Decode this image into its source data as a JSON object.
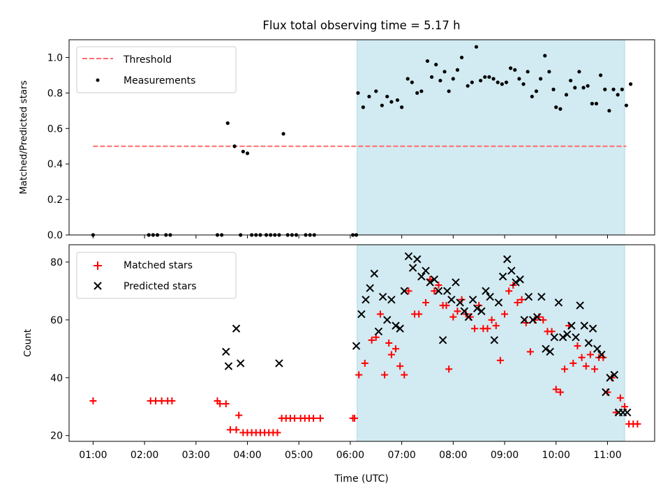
{
  "figure_title": "Flux total observing time = 5.17 h",
  "xlabel": "Time (UTC)",
  "xticks": [
    "01:00",
    "02:00",
    "03:00",
    "04:00",
    "05:00",
    "06:00",
    "07:00",
    "08:00",
    "09:00",
    "10:00",
    "11:00"
  ],
  "colors": {
    "shade": "#add8e6",
    "threshold": "#ff6b6b",
    "measurement": "#000000",
    "matched": "#ff0000",
    "predicted": "#000000"
  },
  "chart_data": [
    {
      "type": "scatter",
      "panel": "top",
      "ylabel": "Matched/Predicted stars",
      "xlim": [
        "00:32",
        "11:55"
      ],
      "ylim": [
        0,
        1.1
      ],
      "yticks": [
        "0.0",
        "0.2",
        "0.4",
        "0.6",
        "0.8",
        "1.0"
      ],
      "legend_position": "upper left",
      "shaded_interval": [
        "06:08",
        "11:20"
      ],
      "threshold": {
        "name": "Threshold",
        "value": 0.5,
        "x_range": [
          "01:00",
          "11:22"
        ]
      },
      "series": [
        {
          "name": "Measurements",
          "x": [
            "01:00",
            "02:05",
            "02:10",
            "02:15",
            "02:25",
            "02:30",
            "03:25",
            "03:30",
            "03:37",
            "03:45",
            "03:52",
            "03:55",
            "04:00",
            "04:05",
            "04:10",
            "04:15",
            "04:22",
            "04:27",
            "04:32",
            "04:37",
            "04:42",
            "04:47",
            "04:52",
            "04:57",
            "05:08",
            "05:13",
            "05:18",
            "06:03",
            "06:07",
            "06:09",
            "06:15",
            "06:22",
            "06:30",
            "06:37",
            "06:43",
            "06:48",
            "06:55",
            "07:00",
            "07:07",
            "07:12",
            "07:18",
            "07:23",
            "07:30",
            "07:35",
            "07:40",
            "07:45",
            "07:50",
            "07:55",
            "08:00",
            "08:05",
            "08:10",
            "08:17",
            "08:22",
            "08:27",
            "08:32",
            "08:37",
            "08:42",
            "08:47",
            "08:52",
            "08:57",
            "09:02",
            "09:07",
            "09:12",
            "09:17",
            "09:22",
            "09:27",
            "09:32",
            "09:37",
            "09:42",
            "09:47",
            "09:52",
            "09:57",
            "10:00",
            "10:05",
            "10:12",
            "10:17",
            "10:22",
            "10:27",
            "10:32",
            "10:37",
            "10:42",
            "10:47",
            "10:52",
            "10:57",
            "11:02",
            "11:07",
            "11:12",
            "11:17",
            "11:22",
            "11:27"
          ],
          "y": [
            0.0,
            0.0,
            0.0,
            0.0,
            0.0,
            0.0,
            0.0,
            0.0,
            0.63,
            0.5,
            0.0,
            0.47,
            0.46,
            0.0,
            0.0,
            0.0,
            0.0,
            0.0,
            0.0,
            0.0,
            0.57,
            0.0,
            0.0,
            0.0,
            0.0,
            0.0,
            0.0,
            0.0,
            0.0,
            0.8,
            0.72,
            0.78,
            0.81,
            0.73,
            0.78,
            0.75,
            0.76,
            0.72,
            0.88,
            0.86,
            0.8,
            0.81,
            0.98,
            0.89,
            0.96,
            0.87,
            0.92,
            0.81,
            0.88,
            0.93,
            1.0,
            0.84,
            0.86,
            1.06,
            0.87,
            0.89,
            0.89,
            0.88,
            0.86,
            0.85,
            0.86,
            0.94,
            0.93,
            0.88,
            0.85,
            0.92,
            0.78,
            0.81,
            0.88,
            1.01,
            0.92,
            0.82,
            0.72,
            0.71,
            0.79,
            0.87,
            0.83,
            0.92,
            0.83,
            0.84,
            0.74,
            0.74,
            0.9,
            0.82,
            0.7,
            0.82,
            0.79,
            0.82,
            0.73,
            0.85
          ]
        }
      ]
    },
    {
      "type": "scatter",
      "panel": "bottom",
      "ylabel": "Count",
      "xlim": [
        "00:32",
        "11:55"
      ],
      "ylim": [
        18,
        86
      ],
      "yticks": [
        "20",
        "40",
        "60",
        "80"
      ],
      "legend_position": "upper left",
      "shaded_interval": [
        "06:08",
        "11:20"
      ],
      "series": [
        {
          "name": "Matched stars",
          "x": [
            "01:00",
            "02:07",
            "02:13",
            "02:20",
            "02:27",
            "02:32",
            "03:25",
            "03:28",
            "03:35",
            "03:40",
            "03:47",
            "03:50",
            "03:55",
            "04:00",
            "04:05",
            "04:10",
            "04:15",
            "04:20",
            "04:25",
            "04:30",
            "04:35",
            "04:40",
            "04:45",
            "04:50",
            "04:55",
            "05:02",
            "05:07",
            "05:12",
            "05:17",
            "05:25",
            "06:03",
            "06:05",
            "06:10",
            "06:17",
            "06:25",
            "06:30",
            "06:35",
            "06:40",
            "06:45",
            "06:48",
            "06:53",
            "06:58",
            "07:03",
            "07:08",
            "07:15",
            "07:20",
            "07:28",
            "07:33",
            "07:38",
            "07:43",
            "07:48",
            "07:52",
            "07:55",
            "08:00",
            "08:05",
            "08:10",
            "08:15",
            "08:20",
            "08:25",
            "08:30",
            "08:35",
            "08:40",
            "08:45",
            "08:50",
            "08:55",
            "09:00",
            "09:05",
            "09:10",
            "09:15",
            "09:20",
            "09:25",
            "09:30",
            "09:35",
            "09:40",
            "09:45",
            "09:50",
            "09:55",
            "10:00",
            "10:05",
            "10:10",
            "10:15",
            "10:20",
            "10:25",
            "10:30",
            "10:35",
            "10:40",
            "10:45",
            "10:50",
            "10:55",
            "11:00",
            "11:05",
            "11:10",
            "11:15",
            "11:20",
            "11:25",
            "11:30",
            "11:35"
          ],
          "y": [
            32,
            32,
            32,
            32,
            32,
            32,
            32,
            31,
            31,
            22,
            22,
            27,
            21,
            21,
            21,
            21,
            21,
            21,
            21,
            21,
            21,
            26,
            26,
            26,
            26,
            26,
            26,
            26,
            26,
            26,
            26,
            26,
            41,
            45,
            53,
            54,
            62,
            41,
            52,
            48,
            50,
            44,
            41,
            70,
            62,
            62,
            66,
            74,
            70,
            72,
            65,
            65,
            43,
            61,
            63,
            67,
            62,
            61,
            57,
            65,
            57,
            57,
            60,
            58,
            46,
            62,
            70,
            72,
            66,
            67,
            59,
            49,
            60,
            61,
            60,
            56,
            56,
            36,
            35,
            43,
            58,
            45,
            51,
            47,
            44,
            48,
            43,
            47,
            47,
            35,
            40,
            28,
            33,
            30,
            24,
            24,
            24
          ]
        },
        {
          "name": "Predicted stars",
          "x": [
            "03:35",
            "03:38",
            "03:47",
            "03:52",
            "04:37",
            "06:07",
            "06:13",
            "06:18",
            "06:23",
            "06:28",
            "06:33",
            "06:38",
            "06:43",
            "06:48",
            "06:53",
            "06:58",
            "07:03",
            "07:08",
            "07:13",
            "07:18",
            "07:23",
            "07:28",
            "07:33",
            "07:38",
            "07:43",
            "07:48",
            "07:53",
            "07:58",
            "08:03",
            "08:08",
            "08:13",
            "08:18",
            "08:23",
            "08:28",
            "08:33",
            "08:38",
            "08:43",
            "08:48",
            "08:53",
            "08:58",
            "09:03",
            "09:08",
            "09:13",
            "09:18",
            "09:23",
            "09:28",
            "09:33",
            "09:38",
            "09:43",
            "09:48",
            "09:53",
            "09:58",
            "10:03",
            "10:08",
            "10:13",
            "10:18",
            "10:23",
            "10:28",
            "10:33",
            "10:38",
            "10:43",
            "10:48",
            "10:53",
            "10:58",
            "11:03",
            "11:08",
            "11:13",
            "11:18",
            "11:23"
          ],
          "y": [
            49,
            44,
            57,
            45,
            45,
            51,
            62,
            67,
            71,
            76,
            56,
            68,
            60,
            67,
            58,
            57,
            70,
            82,
            78,
            81,
            75,
            77,
            73,
            74,
            70,
            53,
            70,
            67,
            73,
            66,
            63,
            61,
            67,
            64,
            63,
            70,
            68,
            53,
            66,
            75,
            81,
            77,
            73,
            74,
            60,
            68,
            60,
            61,
            68,
            50,
            49,
            54,
            66,
            54,
            55,
            58,
            54,
            65,
            58,
            52,
            57,
            50,
            48,
            35,
            40,
            41,
            28,
            28,
            28
          ]
        }
      ]
    }
  ]
}
